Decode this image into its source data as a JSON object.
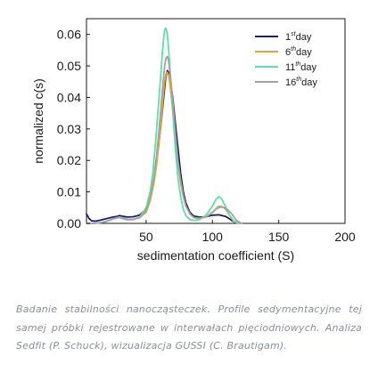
{
  "chart_data": {
    "type": "line",
    "xlabel": "sedimentation coefficient (S)",
    "ylabel": "normalized c(s)",
    "xlim": [
      5,
      200
    ],
    "ylim": [
      0,
      0.065
    ],
    "xticks": [
      "50",
      "100",
      "150",
      "200"
    ],
    "yticks": [
      "0.00",
      "0.01",
      "0.02",
      "0.03",
      "0.04",
      "0.05",
      "0.06"
    ],
    "grid": false,
    "legend_position": "top-right",
    "series": [
      {
        "name_base": "1",
        "name_sup": "st",
        "name_suffix": "day",
        "color": "#1f1d6b",
        "x": [
          5,
          7,
          9,
          12,
          15,
          20,
          25,
          28,
          30,
          33,
          36,
          40,
          45,
          50,
          53,
          56,
          58,
          60,
          62,
          64,
          65,
          66,
          67,
          68,
          69,
          70,
          72,
          74,
          76,
          78,
          80,
          83,
          86,
          90,
          95,
          100,
          105,
          110,
          113,
          116,
          120
        ],
        "y": [
          0.003,
          0.0015,
          0.0008,
          0.0007,
          0.001,
          0.0015,
          0.002,
          0.0022,
          0.0025,
          0.0022,
          0.002,
          0.0021,
          0.0026,
          0.0045,
          0.008,
          0.014,
          0.02,
          0.027,
          0.035,
          0.043,
          0.047,
          0.0485,
          0.048,
          0.046,
          0.043,
          0.04,
          0.032,
          0.024,
          0.016,
          0.01,
          0.0065,
          0.0035,
          0.0023,
          0.002,
          0.0021,
          0.0026,
          0.0027,
          0.0022,
          0.0014,
          0.0005,
          0.0
        ]
      },
      {
        "name_base": "6",
        "name_sup": "th",
        "name_suffix": "day",
        "color": "#e5a331",
        "x": [
          5,
          10,
          15,
          20,
          25,
          28,
          30,
          33,
          36,
          40,
          45,
          50,
          53,
          56,
          58,
          60,
          62,
          63,
          64,
          65,
          66,
          67,
          68,
          70,
          72,
          74,
          76,
          78,
          80,
          83,
          86,
          90,
          95,
          100,
          103,
          105,
          108,
          110,
          113,
          116,
          120
        ],
        "y": [
          0.0,
          0.0,
          0.0002,
          0.0006,
          0.0014,
          0.0018,
          0.002,
          0.0016,
          0.0012,
          0.0012,
          0.0018,
          0.0035,
          0.007,
          0.013,
          0.019,
          0.027,
          0.036,
          0.041,
          0.045,
          0.0475,
          0.048,
          0.047,
          0.044,
          0.036,
          0.027,
          0.019,
          0.013,
          0.0085,
          0.0055,
          0.003,
          0.0018,
          0.0016,
          0.002,
          0.0035,
          0.0048,
          0.0055,
          0.0052,
          0.0044,
          0.0025,
          0.0008,
          0.0
        ]
      },
      {
        "name_base": "11",
        "name_sup": "th",
        "name_suffix": "day",
        "color": "#5be0a8",
        "x": [
          5,
          10,
          15,
          20,
          25,
          28,
          30,
          33,
          36,
          40,
          45,
          50,
          53,
          55,
          57,
          59,
          61,
          62,
          63,
          64,
          65,
          66,
          67,
          68,
          69,
          70,
          72,
          74,
          76,
          78,
          80,
          83,
          86,
          90,
          95,
          100,
          103,
          105,
          107,
          110,
          113,
          116,
          120
        ],
        "y": [
          0.0,
          0.0,
          0.0002,
          0.0006,
          0.0014,
          0.0017,
          0.0018,
          0.0014,
          0.0011,
          0.0012,
          0.002,
          0.005,
          0.01,
          0.016,
          0.025,
          0.036,
          0.047,
          0.053,
          0.058,
          0.0615,
          0.062,
          0.06,
          0.055,
          0.049,
          0.043,
          0.036,
          0.024,
          0.0145,
          0.0085,
          0.0045,
          0.0025,
          0.0012,
          0.0009,
          0.0012,
          0.0025,
          0.0055,
          0.0078,
          0.0085,
          0.0078,
          0.0052,
          0.0025,
          0.0006,
          0.0
        ]
      },
      {
        "name_base": "16",
        "name_sup": "th",
        "name_suffix": "day",
        "color": "#a3a3a3",
        "x": [
          5,
          10,
          15,
          20,
          25,
          28,
          30,
          33,
          36,
          40,
          45,
          50,
          53,
          56,
          58,
          60,
          62,
          63,
          64,
          65,
          66,
          67,
          68,
          70,
          72,
          74,
          76,
          78,
          80,
          83,
          86,
          90,
          95,
          100,
          103,
          106,
          109,
          112,
          115,
          118,
          122
        ],
        "y": [
          0.0,
          0.0,
          0.0002,
          0.0006,
          0.0014,
          0.0018,
          0.002,
          0.0017,
          0.0013,
          0.0013,
          0.0019,
          0.004,
          0.008,
          0.015,
          0.022,
          0.031,
          0.041,
          0.046,
          0.05,
          0.0525,
          0.053,
          0.0515,
          0.048,
          0.039,
          0.029,
          0.02,
          0.0135,
          0.0088,
          0.0055,
          0.003,
          0.0018,
          0.0016,
          0.002,
          0.0034,
          0.0046,
          0.0052,
          0.005,
          0.0042,
          0.0028,
          0.001,
          0.0
        ]
      }
    ]
  },
  "caption": "Badanie stabilności nanocząsteczek. Profile sedymentacyjne tej samej próbki rejestrowane w interwałach pięciodniowych. Analiza Sedfit (P. Schuck), wizualizacja GUSSI (C. Brautigam)."
}
